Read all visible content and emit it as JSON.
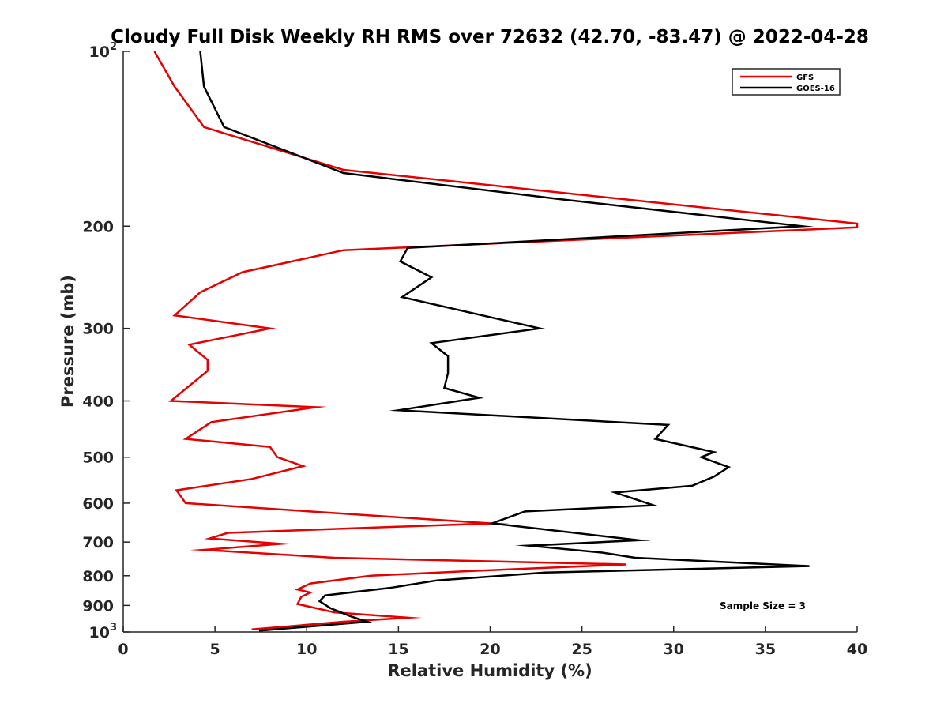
{
  "chart_data": {
    "type": "line",
    "title": "Cloudy Full Disk Weekly RH RMS over 72632 (42.70, -83.47) @ 2022-04-28",
    "xlabel": "Relative Humidity (%)",
    "ylabel": "Pressure (mb)",
    "xlim": [
      0,
      40
    ],
    "ylim": [
      100,
      1000
    ],
    "yscale": "log",
    "y_reversed": true,
    "grid": false,
    "legend_position": "top-right",
    "x_ticks": [
      0,
      5,
      10,
      15,
      20,
      25,
      30,
      35,
      40
    ],
    "x_tick_labels": [
      "0",
      "5",
      "10",
      "15",
      "20",
      "25",
      "30",
      "35",
      "40"
    ],
    "y_ticks": [
      {
        "value": 100,
        "base": "10",
        "exp": "2"
      },
      {
        "value": 200,
        "label": "200"
      },
      {
        "value": 300,
        "label": "300"
      },
      {
        "value": 400,
        "label": "400"
      },
      {
        "value": 500,
        "label": "500"
      },
      {
        "value": 600,
        "label": "600"
      },
      {
        "value": 700,
        "label": "700"
      },
      {
        "value": 800,
        "label": "800"
      },
      {
        "value": 900,
        "label": "900"
      },
      {
        "value": 1000,
        "base": "10",
        "exp": "3"
      }
    ],
    "series": [
      {
        "name": "GFS",
        "color": "#e60000",
        "points": [
          [
            1.7,
            100
          ],
          [
            2.8,
            115
          ],
          [
            4.4,
            135
          ],
          [
            12.0,
            160
          ],
          [
            40.0,
            198
          ],
          [
            40.0,
            201
          ],
          [
            12.0,
            220
          ],
          [
            6.5,
            240
          ],
          [
            4.2,
            260
          ],
          [
            2.8,
            285
          ],
          [
            8.0,
            300
          ],
          [
            3.6,
            320
          ],
          [
            4.6,
            340
          ],
          [
            4.6,
            355
          ],
          [
            2.6,
            400
          ],
          [
            10.5,
            410
          ],
          [
            4.8,
            435
          ],
          [
            3.4,
            465
          ],
          [
            8.0,
            480
          ],
          [
            8.4,
            500
          ],
          [
            9.8,
            518
          ],
          [
            7.0,
            545
          ],
          [
            2.9,
            570
          ],
          [
            3.4,
            600
          ],
          [
            20.0,
            650
          ],
          [
            5.7,
            675
          ],
          [
            4.7,
            690
          ],
          [
            8.6,
            705
          ],
          [
            4.4,
            722
          ],
          [
            11.5,
            745
          ],
          [
            27.4,
            765
          ],
          [
            19.0,
            785
          ],
          [
            13.5,
            800
          ],
          [
            10.2,
            825
          ],
          [
            9.5,
            845
          ],
          [
            10.2,
            855
          ],
          [
            9.7,
            870
          ],
          [
            9.5,
            895
          ],
          [
            11.5,
            925
          ],
          [
            15.5,
            945
          ],
          [
            12.0,
            960
          ],
          [
            7.0,
            990
          ]
        ]
      },
      {
        "name": "GOES-16",
        "color": "#000000",
        "points": [
          [
            4.2,
            100
          ],
          [
            4.4,
            115
          ],
          [
            5.5,
            135
          ],
          [
            12.0,
            162
          ],
          [
            24.0,
            180
          ],
          [
            37.0,
            200
          ],
          [
            15.5,
            218
          ],
          [
            15.1,
            230
          ],
          [
            16.8,
            245
          ],
          [
            15.2,
            265
          ],
          [
            22.7,
            300
          ],
          [
            16.8,
            318
          ],
          [
            17.7,
            335
          ],
          [
            17.7,
            358
          ],
          [
            17.5,
            380
          ],
          [
            19.4,
            395
          ],
          [
            15.0,
            415
          ],
          [
            29.7,
            440
          ],
          [
            29.0,
            465
          ],
          [
            32.2,
            490
          ],
          [
            31.5,
            500
          ],
          [
            33.0,
            520
          ],
          [
            32.2,
            540
          ],
          [
            31.0,
            560
          ],
          [
            26.8,
            575
          ],
          [
            28.9,
            605
          ],
          [
            21.9,
            620
          ],
          [
            20.1,
            650
          ],
          [
            28.1,
            695
          ],
          [
            22.1,
            710
          ],
          [
            26.1,
            730
          ],
          [
            27.9,
            745
          ],
          [
            37.4,
            770
          ],
          [
            23.0,
            790
          ],
          [
            17.1,
            815
          ],
          [
            14.5,
            840
          ],
          [
            11.0,
            865
          ],
          [
            10.7,
            885
          ],
          [
            11.3,
            910
          ],
          [
            12.4,
            940
          ],
          [
            13.3,
            960
          ],
          [
            7.4,
            995
          ]
        ]
      }
    ],
    "legend": [
      "GFS",
      "GOES-16"
    ],
    "annotations": [
      "Sample Size = 3"
    ]
  }
}
